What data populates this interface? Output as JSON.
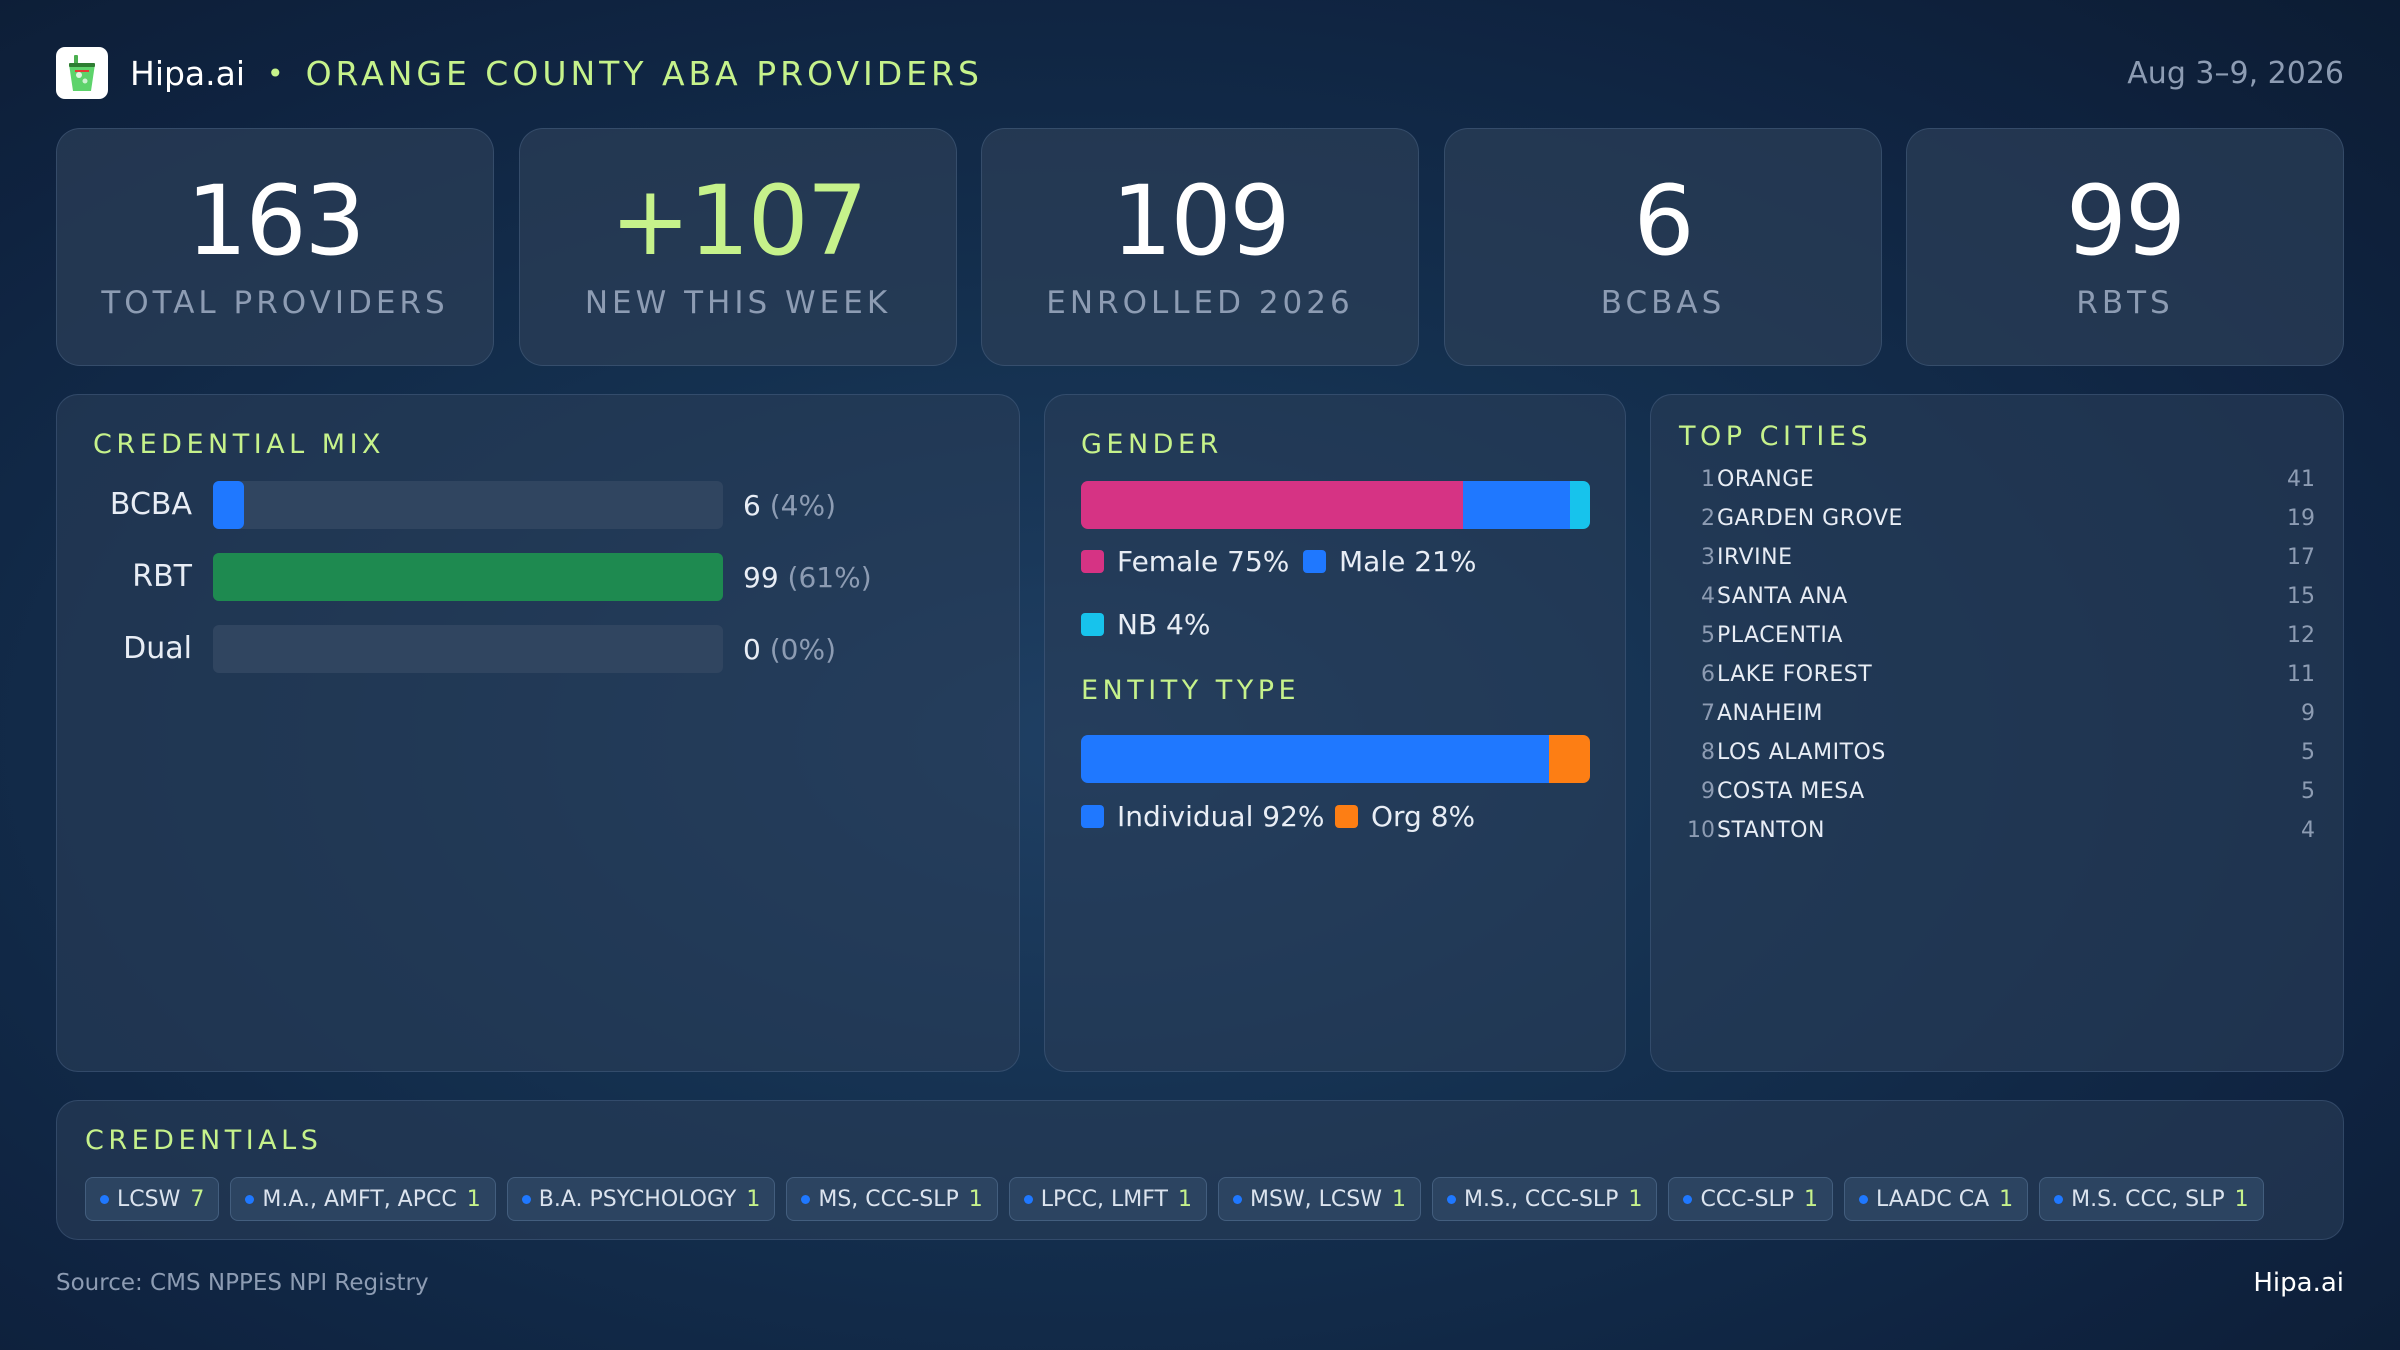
{
  "header": {
    "brand": "Hipa.ai",
    "separator": "•",
    "title": "ORANGE COUNTY ABA PROVIDERS",
    "date_range": "Aug 3–9, 2026"
  },
  "stats": [
    {
      "value": "163",
      "label": "TOTAL PROVIDERS"
    },
    {
      "value": "+107",
      "label": "NEW THIS WEEK"
    },
    {
      "value": "109",
      "label": "ENROLLED 2026"
    },
    {
      "value": "6",
      "label": "BCBAS"
    },
    {
      "value": "99",
      "label": "RBTS"
    }
  ],
  "credential_mix": {
    "title": "CREDENTIAL MIX",
    "rows": [
      {
        "label": "BCBA",
        "count": "6",
        "pct": "(4%)",
        "fraction": 0.04,
        "color": "#1f78ff"
      },
      {
        "label": "RBT",
        "count": "99",
        "pct": "(61%)",
        "fraction": 1.0,
        "color": "#1e8a50"
      },
      {
        "label": "Dual",
        "count": "0",
        "pct": "(0%)",
        "fraction": 0,
        "color": "#1e8a50"
      }
    ]
  },
  "gender": {
    "title": "GENDER",
    "segments": [
      {
        "label": "Female 75%",
        "fraction": 0.75,
        "color": "#d63384"
      },
      {
        "label": "Male 21%",
        "fraction": 0.21,
        "color": "#1f78ff"
      },
      {
        "label": "NB 4%",
        "fraction": 0.04,
        "color": "#17c3ec"
      }
    ]
  },
  "entity_type": {
    "title": "ENTITY TYPE",
    "segments": [
      {
        "label": "Individual 92%",
        "fraction": 0.92,
        "color": "#1f78ff"
      },
      {
        "label": "Org 8%",
        "fraction": 0.08,
        "color": "#fd7e14"
      }
    ]
  },
  "top_cities": {
    "title": "TOP CITIES",
    "items": [
      {
        "rank": "1",
        "name": "ORANGE",
        "count": "41"
      },
      {
        "rank": "2",
        "name": "GARDEN GROVE",
        "count": "19"
      },
      {
        "rank": "3",
        "name": "IRVINE",
        "count": "17"
      },
      {
        "rank": "4",
        "name": "SANTA ANA",
        "count": "15"
      },
      {
        "rank": "5",
        "name": "PLACENTIA",
        "count": "12"
      },
      {
        "rank": "6",
        "name": "LAKE FOREST",
        "count": "11"
      },
      {
        "rank": "7",
        "name": "ANAHEIM",
        "count": "9"
      },
      {
        "rank": "8",
        "name": "LOS ALAMITOS",
        "count": "5"
      },
      {
        "rank": "9",
        "name": "COSTA MESA",
        "count": "5"
      },
      {
        "rank": "10",
        "name": "STANTON",
        "count": "4"
      }
    ]
  },
  "credentials": {
    "title": "CREDENTIALS",
    "chips": [
      {
        "label": "LCSW",
        "count": "7"
      },
      {
        "label": "M.A., AMFT, APCC",
        "count": "1"
      },
      {
        "label": "B.A. PSYCHOLOGY",
        "count": "1"
      },
      {
        "label": "MS, CCC-SLP",
        "count": "1"
      },
      {
        "label": "LPCC, LMFT",
        "count": "1"
      },
      {
        "label": "MSW, LCSW",
        "count": "1"
      },
      {
        "label": "M.S., CCC-SLP",
        "count": "1"
      },
      {
        "label": "CCC-SLP",
        "count": "1"
      },
      {
        "label": "LAADC CA",
        "count": "1"
      },
      {
        "label": "M.S. CCC, SLP",
        "count": "1"
      }
    ]
  },
  "footer": {
    "source": "Source: CMS NPPES NPI Registry",
    "brand": "Hipa.ai"
  }
}
